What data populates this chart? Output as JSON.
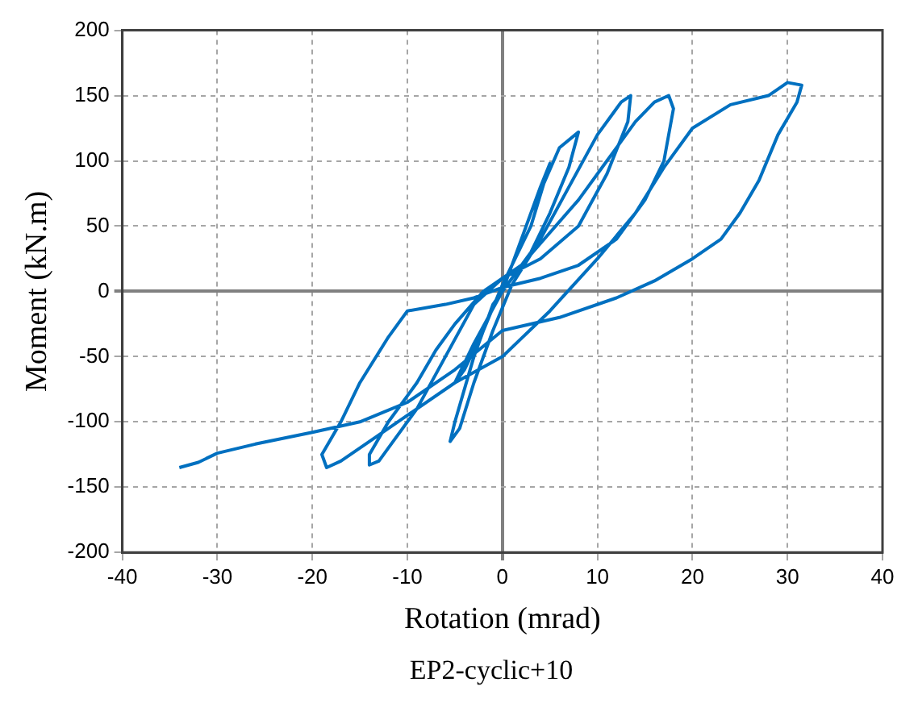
{
  "chart_data": {
    "type": "line",
    "xlabel": "Rotation (mrad)",
    "ylabel": "Moment (kN.m)",
    "annotations": [
      "EP2-cyclic+10"
    ],
    "xlim": [
      -40,
      40
    ],
    "xticks": [
      -40,
      -30,
      -20,
      -10,
      0,
      10,
      20,
      30,
      40
    ],
    "ylim": [
      -200,
      200
    ],
    "yticks": [
      -200,
      -150,
      -100,
      -50,
      0,
      50,
      100,
      150,
      200
    ],
    "grid": true,
    "legend": false,
    "marker": "none",
    "line_style": "solid",
    "series": [
      {
        "color": "#0070c0",
        "x": [
          0,
          2,
          4,
          5,
          3,
          0,
          -2,
          -4,
          -5,
          -3,
          0,
          3,
          6,
          8,
          7,
          5,
          3,
          1,
          -1,
          -3,
          -5,
          -5.5,
          -4.5,
          -3,
          -1,
          1,
          4,
          7,
          10,
          12.5,
          13.5,
          13.2,
          11,
          8,
          4,
          0,
          -3,
          -6,
          -9,
          -12,
          -13,
          -14,
          -14,
          -12,
          -9,
          -7,
          -5,
          -2,
          2,
          5,
          8,
          11,
          14,
          16,
          17.5,
          18,
          17,
          15,
          12,
          8,
          4,
          0,
          -3,
          -6,
          -10,
          -12,
          -15,
          -17,
          -19,
          -18.5,
          -17,
          -14,
          -10,
          -5,
          0,
          5,
          10,
          14,
          17,
          20,
          24,
          28,
          30,
          31.5,
          31,
          29,
          27,
          25,
          23,
          20,
          16,
          12,
          6,
          0,
          -5,
          -10,
          -15,
          -20,
          -26,
          -30,
          -32,
          -34
        ],
        "values": [
          0,
          40,
          80,
          98,
          50,
          5,
          -30,
          -60,
          -70,
          -40,
          0,
          60,
          110,
          122,
          95,
          60,
          30,
          10,
          -10,
          -50,
          -100,
          -115,
          -105,
          -70,
          -30,
          5,
          40,
          80,
          120,
          145,
          150,
          130,
          90,
          50,
          25,
          10,
          -10,
          -50,
          -90,
          -120,
          -130,
          -133,
          -125,
          -100,
          -70,
          -45,
          -25,
          0,
          20,
          45,
          70,
          100,
          130,
          145,
          150,
          140,
          100,
          70,
          40,
          20,
          10,
          3,
          -5,
          -10,
          -15,
          -35,
          -70,
          -100,
          -125,
          -135,
          -130,
          -115,
          -95,
          -70,
          -50,
          -15,
          25,
          60,
          95,
          125,
          143,
          150,
          160,
          158,
          145,
          120,
          85,
          60,
          40,
          25,
          8,
          -5,
          -20,
          -30,
          -60,
          -85,
          -100,
          -108,
          -117,
          -124,
          -131,
          -135
        ]
      }
    ]
  }
}
